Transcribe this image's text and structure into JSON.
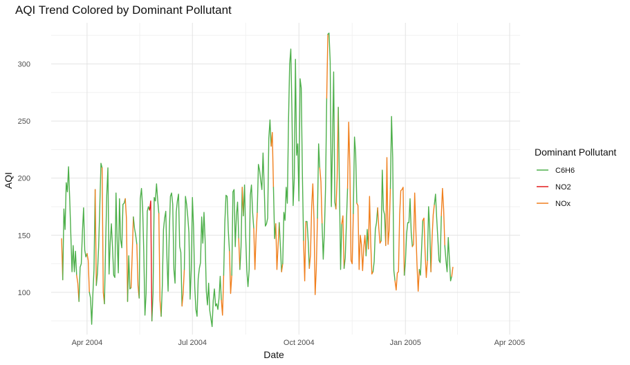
{
  "chart_data": {
    "type": "line",
    "title": "AQI Trend Colored by Dominant Pollutant",
    "xlabel": "Date",
    "ylabel": "AQI",
    "ylim": [
      63,
      336
    ],
    "xlim": [
      "2004-03-01",
      "2005-04-10"
    ],
    "y_ticks": [
      100,
      150,
      200,
      250,
      300
    ],
    "x_ticks": [
      {
        "date": "2004-04-01",
        "label": "Apr 2004"
      },
      {
        "date": "2004-07-01",
        "label": "Jul 2004"
      },
      {
        "date": "2004-10-01",
        "label": "Oct 2004"
      },
      {
        "date": "2005-01-01",
        "label": "Jan 2005"
      },
      {
        "date": "2005-04-01",
        "label": "Apr 2005"
      }
    ],
    "grid": true,
    "legend": {
      "title": "Dominant Pollutant",
      "placement": "right",
      "entries": [
        {
          "name": "C6H6",
          "color": "#4daf4a"
        },
        {
          "name": "NO2",
          "color": "#e41a1c"
        },
        {
          "name": "NOx",
          "color": "#f07f1d"
        }
      ]
    },
    "start_date": "2004-03-10",
    "values": [
      147,
      111,
      173,
      155,
      196,
      188,
      210,
      182,
      150,
      118,
      141,
      118,
      136,
      115,
      108,
      92,
      122,
      125,
      153,
      174,
      137,
      131,
      134,
      128,
      100,
      95,
      72,
      98,
      120,
      190,
      106,
      117,
      140,
      175,
      213,
      209,
      100,
      90,
      140,
      185,
      209,
      116,
      144,
      160,
      139,
      115,
      113,
      187,
      146,
      117,
      182,
      146,
      139,
      177,
      178,
      182,
      165,
      92,
      132,
      103,
      104,
      133,
      166,
      156,
      150,
      142,
      106,
      95,
      182,
      191,
      174,
      135,
      80,
      99,
      171,
      175,
      172,
      180,
      75,
      99,
      183,
      180,
      195,
      181,
      169,
      93,
      79,
      106,
      155,
      165,
      171,
      130,
      101,
      152,
      184,
      187,
      177,
      120,
      108,
      170,
      180,
      186,
      140,
      135,
      88,
      99,
      120,
      184,
      177,
      166,
      152,
      94,
      120,
      183,
      157,
      105,
      85,
      79,
      112,
      121,
      126,
      166,
      143,
      170,
      145,
      101,
      89,
      108,
      84,
      77,
      70,
      93,
      103,
      88,
      90,
      85,
      95,
      114,
      93,
      80,
      115,
      161,
      185,
      184,
      154,
      136,
      99,
      115,
      188,
      190,
      140,
      167,
      179,
      147,
      120,
      140,
      192,
      167,
      194,
      150,
      119,
      105,
      120,
      185,
      194,
      170,
      156,
      120,
      150,
      170,
      212,
      207,
      198,
      190,
      222,
      193,
      158,
      160,
      165,
      235,
      251,
      228,
      240,
      192,
      147,
      160,
      120,
      141,
      161,
      140,
      118,
      125,
      170,
      163,
      192,
      178,
      250,
      300,
      313,
      256,
      176,
      200,
      304,
      220,
      230,
      180,
      287,
      279,
      203,
      145,
      110,
      162,
      162,
      145,
      121,
      133,
      175,
      195,
      165,
      98,
      120,
      165,
      230,
      209,
      197,
      160,
      129,
      153,
      192,
      270,
      326,
      327,
      302,
      175,
      230,
      293,
      179,
      173,
      200,
      262,
      192,
      120,
      160,
      167,
      121,
      130,
      160,
      191,
      249,
      210,
      128,
      125,
      169,
      236,
      222,
      178,
      176,
      120,
      150,
      142,
      119,
      139,
      150,
      132,
      155,
      138,
      184,
      144,
      116,
      118,
      127,
      155,
      161,
      174,
      156,
      143,
      145,
      207,
      172,
      168,
      141,
      218,
      142,
      155,
      191,
      254,
      218,
      119,
      110,
      102,
      117,
      118,
      168,
      189,
      190,
      192,
      115,
      127,
      151,
      161,
      161,
      182,
      152,
      140,
      142,
      187,
      155,
      124,
      101,
      120,
      115,
      139,
      163,
      165,
      135,
      113,
      128,
      175,
      156,
      118,
      147,
      168,
      177,
      186,
      165,
      147,
      128,
      126,
      167,
      191,
      173,
      141,
      128,
      118,
      148,
      129,
      110,
      114,
      122
    ],
    "dominant": [
      "C6H6",
      "NOx",
      "C6H6",
      "C6H6",
      "C6H6",
      "C6H6",
      "C6H6",
      "C6H6",
      "C6H6",
      "C6H6",
      "C6H6",
      "C6H6",
      "C6H6",
      "C6H6",
      "NOx",
      "NOx",
      "C6H6",
      "C6H6",
      "C6H6",
      "C6H6",
      "C6H6",
      "C6H6",
      "C6H6",
      "NOx",
      "NOx",
      "C6H6",
      "C6H6",
      "C6H6",
      "C6H6",
      "C6H6",
      "NOx",
      "C6H6",
      "C6H6",
      "C6H6",
      "C6H6",
      "C6H6",
      "NOx",
      "NOx",
      "C6H6",
      "C6H6",
      "C6H6",
      "C6H6",
      "C6H6",
      "C6H6",
      "C6H6",
      "C6H6",
      "C6H6",
      "C6H6",
      "C6H6",
      "C6H6",
      "C6H6",
      "C6H6",
      "C6H6",
      "C6H6",
      "C6H6",
      "C6H6",
      "NOx",
      "NOx",
      "C6H6",
      "C6H6",
      "C6H6",
      "NOx",
      "NOx",
      "C6H6",
      "C6H6",
      "C6H6",
      "NOx",
      "NOx",
      "C6H6",
      "C6H6",
      "C6H6",
      "C6H6",
      "C6H6",
      "C6H6",
      "C6H6",
      "C6H6",
      "C6H6",
      "NO2",
      "NO2",
      "C6H6",
      "C6H6",
      "C6H6",
      "C6H6",
      "C6H6",
      "C6H6",
      "NOx",
      "NOx",
      "C6H6",
      "C6H6",
      "C6H6",
      "C6H6",
      "C6H6",
      "C6H6",
      "C6H6",
      "C6H6",
      "C6H6",
      "C6H6",
      "C6H6",
      "C6H6",
      "C6H6",
      "C6H6",
      "C6H6",
      "C6H6",
      "C6H6",
      "C6H6",
      "NOx",
      "NOx",
      "C6H6",
      "C6H6",
      "C6H6",
      "C6H6",
      "C6H6",
      "C6H6",
      "C6H6",
      "C6H6",
      "C6H6",
      "C6H6",
      "C6H6",
      "C6H6",
      "C6H6",
      "C6H6",
      "C6H6",
      "C6H6",
      "C6H6",
      "C6H6",
      "C6H6",
      "C6H6",
      "C6H6",
      "C6H6",
      "C6H6",
      "C6H6",
      "C6H6",
      "C6H6",
      "C6H6",
      "C6H6",
      "C6H6",
      "C6H6",
      "C6H6",
      "C6H6",
      "NOx",
      "NOx",
      "C6H6",
      "C6H6",
      "C6H6",
      "C6H6",
      "C6H6",
      "NOx",
      "NOx",
      "C6H6",
      "C6H6",
      "C6H6",
      "C6H6",
      "C6H6",
      "C6H6",
      "NOx",
      "C6H6",
      "C6H6",
      "NOx",
      "C6H6",
      "C6H6",
      "C6H6",
      "C6H6",
      "C6H6",
      "C6H6",
      "C6H6",
      "C6H6",
      "C6H6",
      "NOx",
      "NOx",
      "NOx",
      "C6H6",
      "C6H6",
      "C6H6",
      "C6H6",
      "C6H6",
      "C6H6",
      "C6H6",
      "C6H6",
      "C6H6",
      "C6H6",
      "C6H6",
      "C6H6",
      "NOx",
      "NOx",
      "C6H6",
      "C6H6",
      "NOx",
      "NOx",
      "NOx",
      "C6H6",
      "C6H6",
      "NOx",
      "C6H6",
      "C6H6",
      "C6H6",
      "C6H6",
      "C6H6",
      "C6H6",
      "C6H6",
      "C6H6",
      "C6H6",
      "C6H6",
      "C6H6",
      "C6H6",
      "C6H6",
      "C6H6",
      "C6H6",
      "C6H6",
      "C6H6",
      "C6H6",
      "NOx",
      "NOx",
      "C6H6",
      "C6H6",
      "C6H6",
      "NOx",
      "NOx",
      "NOx",
      "NOx",
      "NOx",
      "NOx",
      "NOx",
      "C6H6",
      "C6H6",
      "NOx",
      "NOx",
      "C6H6",
      "C6H6",
      "C6H6",
      "C6H6",
      "NOx",
      "C6H6",
      "C6H6",
      "C6H6",
      "C6H6",
      "C6H6",
      "C6H6",
      "C6H6",
      "NOx",
      "NOx",
      "C6H6",
      "C6H6",
      "C6H6",
      "NOx",
      "NOx",
      "C6H6",
      "C6H6",
      "C6H6",
      "NOx",
      "NOx",
      "NOx",
      "NOx",
      "NOx",
      "C6H6",
      "C6H6",
      "C6H6",
      "NOx",
      "NOx",
      "NOx",
      "NOx",
      "NOx",
      "NOx",
      "NOx",
      "NOx",
      "C6H6",
      "C6H6",
      "NOx",
      "NOx",
      "NOx",
      "NOx",
      "C6H6",
      "C6H6",
      "C6H6",
      "C6H6",
      "NOx",
      "NOx",
      "NOx",
      "C6H6",
      "C6H6",
      "C6H6",
      "C6H6",
      "NOx",
      "NOx",
      "NOx",
      "NOx",
      "C6H6",
      "C6H6",
      "C6H6",
      "C6H6",
      "NOx",
      "NOx",
      "NOx",
      "NOx",
      "NOx",
      "NOx",
      "NOx",
      "NOx",
      "C6H6",
      "C6H6",
      "C6H6",
      "C6H6",
      "C6H6",
      "C6H6",
      "C6H6",
      "NOx",
      "NOx",
      "NOx",
      "NOx",
      "NOx",
      "NOx",
      "C6H6",
      "C6H6",
      "C6H6",
      "NOx",
      "NOx",
      "NOx",
      "NOx",
      "C6H6",
      "C6H6",
      "C6H6",
      "NOx",
      "NOx",
      "NOx",
      "C6H6",
      "C6H6",
      "C6H6",
      "C6H6",
      "C6H6",
      "C6H6",
      "NOx",
      "NOx",
      "NOx",
      "C6H6",
      "C6H6",
      "C6H6",
      "C6H6",
      "C6H6",
      "C6H6",
      "NOx",
      "NOx",
      "NOx",
      "NOx",
      "NOx"
    ]
  }
}
